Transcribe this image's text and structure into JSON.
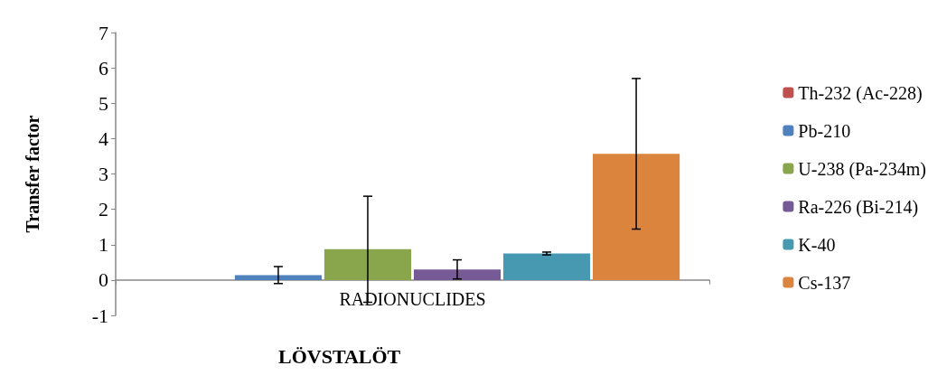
{
  "chart_data": {
    "type": "bar",
    "categories": [
      "RADIONUCLIDES"
    ],
    "xlabel": "LÖVSTALÖT",
    "ylabel": "Transfer factor",
    "ylim": [
      -1,
      7
    ],
    "yticks": [
      -1,
      0,
      1,
      2,
      3,
      4,
      5,
      6,
      7
    ],
    "legend": "right",
    "series": [
      {
        "name": "Th-232 (Ac-228)",
        "color": "#c0504d",
        "values": [
          null
        ],
        "errors": [
          null
        ]
      },
      {
        "name": "Pb-210",
        "color": "#4f81bd",
        "values": [
          0.14
        ],
        "errors": [
          0.24
        ]
      },
      {
        "name": "U-238 (Pa-234m)",
        "color": "#8aa64d",
        "values": [
          0.87
        ],
        "errors": [
          1.5
        ]
      },
      {
        "name": "Ra-226 (Bi-214)",
        "color": "#765a96",
        "values": [
          0.3
        ],
        "errors": [
          0.27
        ]
      },
      {
        "name": "K-40",
        "color": "#4699b0",
        "values": [
          0.75
        ],
        "errors": [
          0.04
        ]
      },
      {
        "name": "Cs-137",
        "color": "#db843d",
        "values": [
          3.57
        ],
        "errors": [
          2.13
        ]
      }
    ]
  }
}
